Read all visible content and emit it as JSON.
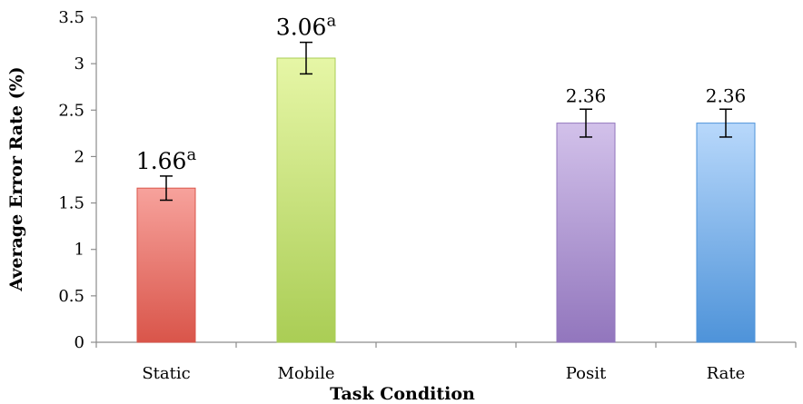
{
  "chart_data": {
    "type": "bar",
    "title": "",
    "xlabel": "Task Condition",
    "ylabel": "Average Error Rate (%)",
    "ylim": [
      0,
      3.5
    ],
    "yticks": [
      "0",
      "0.5",
      "1",
      "1.5",
      "2",
      "2.5",
      "3",
      "3.5"
    ],
    "grid": false,
    "categories": [
      "Static",
      "Mobile",
      "",
      "Posit",
      "Rate"
    ],
    "values": [
      1.66,
      3.06,
      null,
      2.36,
      2.36
    ],
    "error": [
      0.13,
      0.17,
      null,
      0.15,
      0.15
    ],
    "labels": [
      {
        "value": "1.66",
        "sup": "a"
      },
      {
        "value": "3.06",
        "sup": "a"
      },
      null,
      {
        "value": "2.36",
        "sup": ""
      },
      {
        "value": "2.36",
        "sup": ""
      }
    ],
    "colors": [
      [
        "#f7a29c",
        "#d9554a"
      ],
      [
        "#e6f6a6",
        "#aacd55"
      ],
      null,
      [
        "#d2c1ea",
        "#9276bd"
      ],
      [
        "#b8d8fb",
        "#4e93d9"
      ]
    ]
  }
}
